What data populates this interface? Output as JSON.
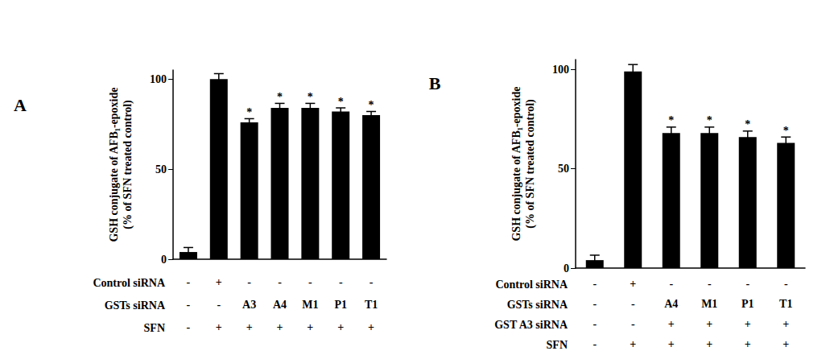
{
  "chart_data": [
    {
      "type": "bar",
      "panel": "A",
      "y_label": [
        "GSH conjugate of AFB₁-epoxide",
        "(% of SFN treated control)"
      ],
      "values": [
        4,
        100,
        76,
        84,
        84,
        82,
        80
      ],
      "errors": [
        2.5,
        3,
        2,
        2.5,
        2.5,
        2,
        2
      ],
      "significance_labels": [
        null,
        null,
        "*",
        "*",
        "*",
        "*",
        "*"
      ],
      "color": "#000000",
      "ylim": [
        0,
        105
      ],
      "yticks": [
        0,
        50,
        100
      ],
      "grid": false,
      "rows": [
        {
          "label": "Control siRNA",
          "values": [
            "-",
            "+",
            "-",
            "-",
            "-",
            "-",
            "-"
          ]
        },
        {
          "label": "GSTs siRNA",
          "values": [
            "-",
            "-",
            "A3",
            "A4",
            "M1",
            "P1",
            "T1"
          ]
        },
        {
          "label": "SFN",
          "values": [
            "-",
            "+",
            "+",
            "+",
            "+",
            "+",
            "+"
          ]
        }
      ]
    },
    {
      "type": "bar",
      "panel": "B",
      "y_label": [
        "GSH conjugate of AFB₁-epoxide",
        "(% of SFN treated control)"
      ],
      "values": [
        4,
        99,
        68,
        68,
        66,
        63
      ],
      "errors": [
        2.5,
        3.5,
        3,
        3,
        3,
        3
      ],
      "significance_labels": [
        null,
        null,
        "*",
        "*",
        "*",
        "*"
      ],
      "color": "#000000",
      "ylim": [
        0,
        105
      ],
      "yticks": [
        0,
        50,
        100
      ],
      "grid": false,
      "rows": [
        {
          "label": "Control siRNA",
          "values": [
            "-",
            "+",
            "-",
            "-",
            "-",
            "-"
          ]
        },
        {
          "label": "GSTs siRNA",
          "values": [
            "-",
            "-",
            "A4",
            "M1",
            "P1",
            "T1"
          ]
        },
        {
          "label": "GST A3 siRNA",
          "values": [
            "-",
            "-",
            "+",
            "+",
            "+",
            "+"
          ]
        },
        {
          "label": "SFN",
          "values": [
            "-",
            "+",
            "+",
            "+",
            "+",
            "+"
          ]
        }
      ]
    }
  ]
}
